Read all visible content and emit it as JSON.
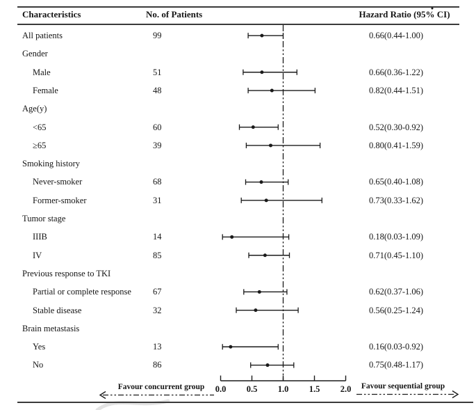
{
  "header": {
    "characteristics": "Characteristics",
    "patients": "No. of Patients",
    "hazard": "Hazard Ratio (95% CI)"
  },
  "rows": [
    {
      "label": "All patients",
      "indent": 0,
      "n": "99",
      "hr_text": "0.66(0.44-1.00)",
      "hr": 0.66,
      "lo": 0.44,
      "hi": 1.0
    },
    {
      "label": "Gender",
      "indent": 0,
      "n": "",
      "hr_text": "",
      "hr": null
    },
    {
      "label": "Male",
      "indent": 1,
      "n": "51",
      "hr_text": "0.66(0.36-1.22)",
      "hr": 0.66,
      "lo": 0.36,
      "hi": 1.22
    },
    {
      "label": "Female",
      "indent": 1,
      "n": "48",
      "hr_text": "0.82(0.44-1.51)",
      "hr": 0.82,
      "lo": 0.44,
      "hi": 1.51
    },
    {
      "label": "Age(y)",
      "indent": 0,
      "n": "",
      "hr_text": "",
      "hr": null
    },
    {
      "label": "<65",
      "indent": 1,
      "n": "60",
      "hr_text": "0.52(0.30-0.92)",
      "hr": 0.52,
      "lo": 0.3,
      "hi": 0.92
    },
    {
      "label": "≥65",
      "indent": 1,
      "n": "39",
      "hr_text": "0.80(0.41-1.59)",
      "hr": 0.8,
      "lo": 0.41,
      "hi": 1.59
    },
    {
      "label": "Smoking history",
      "indent": 0,
      "n": "",
      "hr_text": "",
      "hr": null
    },
    {
      "label": "Never-smoker",
      "indent": 1,
      "n": "68",
      "hr_text": "0.65(0.40-1.08)",
      "hr": 0.65,
      "lo": 0.4,
      "hi": 1.08
    },
    {
      "label": "Former-smoker",
      "indent": 1,
      "n": "31",
      "hr_text": "0.73(0.33-1.62)",
      "hr": 0.73,
      "lo": 0.33,
      "hi": 1.62
    },
    {
      "label": "Tumor stage",
      "indent": 0,
      "n": "",
      "hr_text": "",
      "hr": null
    },
    {
      "label": "IIIB",
      "indent": 1,
      "n": "14",
      "hr_text": "0.18(0.03-1.09)",
      "hr": 0.18,
      "lo": 0.03,
      "hi": 1.09
    },
    {
      "label": "IV",
      "indent": 1,
      "n": "85",
      "hr_text": "0.71(0.45-1.10)",
      "hr": 0.71,
      "lo": 0.45,
      "hi": 1.1
    },
    {
      "label": "Previous response to TKI",
      "indent": 0,
      "n": "",
      "hr_text": "",
      "hr": null
    },
    {
      "label": "Partial or complete response",
      "indent": 1,
      "n": "67",
      "hr_text": "0.62(0.37-1.06)",
      "hr": 0.62,
      "lo": 0.37,
      "hi": 1.06
    },
    {
      "label": "Stable disease",
      "indent": 1,
      "n": "32",
      "hr_text": "0.56(0.25-1.24)",
      "hr": 0.56,
      "lo": 0.25,
      "hi": 1.24
    },
    {
      "label": "Brain metastasis",
      "indent": 0,
      "n": "",
      "hr_text": "",
      "hr": null
    },
    {
      "label": "Yes",
      "indent": 1,
      "n": "13",
      "hr_text": "0.16(0.03-0.92)",
      "hr": 0.16,
      "lo": 0.03,
      "hi": 0.92
    },
    {
      "label": "No",
      "indent": 1,
      "n": "86",
      "hr_text": "0.75(0.48-1.17)",
      "hr": 0.75,
      "lo": 0.48,
      "hi": 1.17
    }
  ],
  "axis": {
    "tick_labels": [
      "0.0",
      "0.5",
      "1.0",
      "1.5",
      "2.0"
    ],
    "tick_values": [
      0,
      0.5,
      1.0,
      1.5,
      2.0
    ],
    "reference_value": 1.0
  },
  "footer": {
    "left_label": "Favour concurrent group",
    "right_label": "Favour sequential group"
  },
  "colors": {
    "ink": "#1a1a1a",
    "rule": "#3a3a3a",
    "watermark": "#cccccc"
  },
  "chart_data": {
    "type": "scatter",
    "subtype": "forest-plot",
    "title": "",
    "xlabel": "Hazard Ratio",
    "xlim": [
      0.0,
      2.0
    ],
    "x_ticks": [
      0.0,
      0.5,
      1.0,
      1.5,
      2.0
    ],
    "reference_line": 1.0,
    "grid": false,
    "categories": [
      "All patients",
      "Male",
      "Female",
      "<65",
      "≥65",
      "Never-smoker",
      "Former-smoker",
      "IIIB",
      "IV",
      "Partial or complete response",
      "Stable disease",
      "Yes",
      "No"
    ],
    "n_patients": [
      99,
      51,
      48,
      60,
      39,
      68,
      31,
      14,
      85,
      67,
      32,
      13,
      86
    ],
    "hazard_ratios": [
      0.66,
      0.66,
      0.82,
      0.52,
      0.8,
      0.65,
      0.73,
      0.18,
      0.71,
      0.62,
      0.56,
      0.16,
      0.75
    ],
    "ci_low": [
      0.44,
      0.36,
      0.44,
      0.3,
      0.41,
      0.4,
      0.33,
      0.03,
      0.45,
      0.37,
      0.25,
      0.03,
      0.48
    ],
    "ci_high": [
      1.0,
      1.22,
      1.51,
      0.92,
      1.59,
      1.08,
      1.62,
      1.09,
      1.1,
      1.06,
      1.24,
      0.92,
      1.17
    ],
    "group_headers": [
      "Gender",
      "Age(y)",
      "Smoking history",
      "Tumor stage",
      "Previous response to TKI",
      "Brain metastasis"
    ],
    "annotations": [
      "Favour concurrent group",
      "Favour sequential group"
    ]
  }
}
